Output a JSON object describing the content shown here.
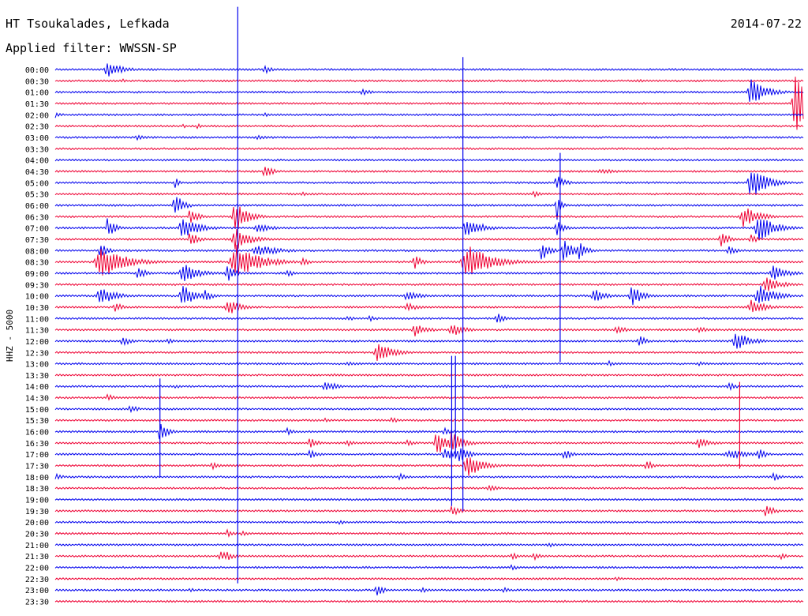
{
  "header": {
    "station": "HT Tsoukalades, Lefkada",
    "filter": "Applied filter: WWSSN-SP",
    "date": "2014-07-22"
  },
  "colors": {
    "blue": "#0000ee",
    "red": "#ee0033"
  },
  "chart_data": {
    "type": "line",
    "title": "HT Tsoukalades, Lefkada",
    "subtitle": "Applied filter: WWSSN-SP",
    "date": "2014-07-22",
    "ylabel": "HHZ - 5000",
    "row_labels": [
      "00:00",
      "00:30",
      "01:00",
      "01:30",
      "02:00",
      "02:30",
      "03:00",
      "03:30",
      "04:00",
      "04:30",
      "05:00",
      "05:30",
      "06:00",
      "06:30",
      "07:00",
      "07:30",
      "08:00",
      "08:30",
      "09:00",
      "09:30",
      "10:00",
      "10:30",
      "11:00",
      "11:30",
      "12:00",
      "12:30",
      "13:00",
      "13:30",
      "14:00",
      "14:30",
      "15:00",
      "15:30",
      "16:00",
      "16:30",
      "17:00",
      "17:30",
      "18:00",
      "18:30",
      "19:00",
      "19:30",
      "20:00",
      "20:30",
      "21:00",
      "21:30",
      "22:00",
      "22:30",
      "23:00",
      "23:30"
    ],
    "row_colors": [
      "blue",
      "red"
    ],
    "row_minutes": 30,
    "events": [
      {
        "row": 0,
        "t": 0.07,
        "a": 10,
        "d": 0.02
      },
      {
        "row": 0,
        "t": 0.28,
        "a": 6,
        "d": 0.01
      },
      {
        "row": 1,
        "t": 0.09,
        "a": 3,
        "d": 0.005
      },
      {
        "row": 1,
        "t": 0.78,
        "a": 2,
        "d": 0.02
      },
      {
        "row": 2,
        "t": 0.41,
        "a": 6,
        "d": 0.01
      },
      {
        "row": 2,
        "t": 0.93,
        "a": 18,
        "d": 0.02
      },
      {
        "row": 2,
        "t": 0.95,
        "a": 5,
        "d": 0.01
      },
      {
        "row": 3,
        "t": 0.99,
        "a": 40,
        "d": 0.02
      },
      {
        "row": 4,
        "t": 0.0,
        "a": 4,
        "d": 0.01
      },
      {
        "row": 4,
        "t": 0.28,
        "a": 3,
        "d": 0.01
      },
      {
        "row": 5,
        "t": 0.17,
        "a": 4,
        "d": 0.005
      },
      {
        "row": 5,
        "t": 0.19,
        "a": 5,
        "d": 0.005
      },
      {
        "row": 6,
        "t": 0.11,
        "a": 4,
        "d": 0.015
      },
      {
        "row": 6,
        "t": 0.27,
        "a": 3,
        "d": 0.02
      },
      {
        "row": 8,
        "t": 0.0,
        "a": 2,
        "d": 0.005
      },
      {
        "row": 9,
        "t": 0.28,
        "a": 10,
        "d": 0.01
      },
      {
        "row": 9,
        "t": 0.73,
        "a": 3,
        "d": 0.03
      },
      {
        "row": 10,
        "t": 0.16,
        "a": 10,
        "d": 0.005
      },
      {
        "row": 10,
        "t": 0.67,
        "a": 12,
        "d": 0.01
      },
      {
        "row": 10,
        "t": 0.93,
        "a": 22,
        "d": 0.02
      },
      {
        "row": 11,
        "t": 0.33,
        "a": 3,
        "d": 0.015
      },
      {
        "row": 11,
        "t": 0.64,
        "a": 4,
        "d": 0.01
      },
      {
        "row": 12,
        "t": 0.16,
        "a": 18,
        "d": 0.01
      },
      {
        "row": 12,
        "t": 0.67,
        "a": 24,
        "d": 0.005
      },
      {
        "row": 13,
        "t": 0.18,
        "a": 12,
        "d": 0.01
      },
      {
        "row": 13,
        "t": 0.24,
        "a": 22,
        "d": 0.015
      },
      {
        "row": 13,
        "t": 0.92,
        "a": 14,
        "d": 0.02
      },
      {
        "row": 14,
        "t": 0.07,
        "a": 14,
        "d": 0.01
      },
      {
        "row": 14,
        "t": 0.17,
        "a": 16,
        "d": 0.02
      },
      {
        "row": 14,
        "t": 0.19,
        "a": 8,
        "d": 0.01
      },
      {
        "row": 14,
        "t": 0.27,
        "a": 6,
        "d": 0.02
      },
      {
        "row": 14,
        "t": 0.55,
        "a": 14,
        "d": 0.02
      },
      {
        "row": 14,
        "t": 0.67,
        "a": 10,
        "d": 0.01
      },
      {
        "row": 14,
        "t": 0.94,
        "a": 20,
        "d": 0.02
      },
      {
        "row": 15,
        "t": 0.18,
        "a": 12,
        "d": 0.01
      },
      {
        "row": 15,
        "t": 0.24,
        "a": 16,
        "d": 0.02
      },
      {
        "row": 15,
        "t": 0.89,
        "a": 12,
        "d": 0.01
      },
      {
        "row": 15,
        "t": 0.93,
        "a": 6,
        "d": 0.01
      },
      {
        "row": 16,
        "t": 0.06,
        "a": 10,
        "d": 0.01
      },
      {
        "row": 16,
        "t": 0.27,
        "a": 8,
        "d": 0.03
      },
      {
        "row": 16,
        "t": 0.65,
        "a": 14,
        "d": 0.01
      },
      {
        "row": 16,
        "t": 0.68,
        "a": 16,
        "d": 0.015
      },
      {
        "row": 16,
        "t": 0.7,
        "a": 12,
        "d": 0.01
      },
      {
        "row": 16,
        "t": 0.9,
        "a": 8,
        "d": 0.01
      },
      {
        "row": 17,
        "t": 0.06,
        "a": 22,
        "d": 0.03
      },
      {
        "row": 17,
        "t": 0.24,
        "a": 24,
        "d": 0.03
      },
      {
        "row": 17,
        "t": 0.33,
        "a": 6,
        "d": 0.01
      },
      {
        "row": 17,
        "t": 0.48,
        "a": 10,
        "d": 0.01
      },
      {
        "row": 17,
        "t": 0.55,
        "a": 24,
        "d": 0.03
      },
      {
        "row": 18,
        "t": 0.11,
        "a": 10,
        "d": 0.01
      },
      {
        "row": 18,
        "t": 0.17,
        "a": 14,
        "d": 0.02
      },
      {
        "row": 18,
        "t": 0.23,
        "a": 12,
        "d": 0.01
      },
      {
        "row": 18,
        "t": 0.31,
        "a": 5,
        "d": 0.01
      },
      {
        "row": 18,
        "t": 0.96,
        "a": 10,
        "d": 0.02
      },
      {
        "row": 19,
        "t": 0.95,
        "a": 10,
        "d": 0.02
      },
      {
        "row": 20,
        "t": 0.06,
        "a": 12,
        "d": 0.02
      },
      {
        "row": 20,
        "t": 0.17,
        "a": 14,
        "d": 0.02
      },
      {
        "row": 20,
        "t": 0.2,
        "a": 8,
        "d": 0.01
      },
      {
        "row": 20,
        "t": 0.47,
        "a": 6,
        "d": 0.02
      },
      {
        "row": 20,
        "t": 0.72,
        "a": 10,
        "d": 0.015
      },
      {
        "row": 20,
        "t": 0.77,
        "a": 14,
        "d": 0.015
      },
      {
        "row": 20,
        "t": 0.94,
        "a": 16,
        "d": 0.02
      },
      {
        "row": 21,
        "t": 0.08,
        "a": 8,
        "d": 0.01
      },
      {
        "row": 21,
        "t": 0.23,
        "a": 12,
        "d": 0.015
      },
      {
        "row": 21,
        "t": 0.47,
        "a": 6,
        "d": 0.015
      },
      {
        "row": 21,
        "t": 0.93,
        "a": 10,
        "d": 0.02
      },
      {
        "row": 22,
        "t": 0.39,
        "a": 4,
        "d": 0.01
      },
      {
        "row": 22,
        "t": 0.42,
        "a": 4,
        "d": 0.01
      },
      {
        "row": 22,
        "t": 0.59,
        "a": 8,
        "d": 0.01
      },
      {
        "row": 23,
        "t": 0.48,
        "a": 10,
        "d": 0.015
      },
      {
        "row": 23,
        "t": 0.53,
        "a": 10,
        "d": 0.015
      },
      {
        "row": 23,
        "t": 0.75,
        "a": 5,
        "d": 0.015
      },
      {
        "row": 23,
        "t": 0.86,
        "a": 4,
        "d": 0.015
      },
      {
        "row": 24,
        "t": 0.09,
        "a": 8,
        "d": 0.01
      },
      {
        "row": 24,
        "t": 0.15,
        "a": 4,
        "d": 0.01
      },
      {
        "row": 24,
        "t": 0.78,
        "a": 8,
        "d": 0.01
      },
      {
        "row": 24,
        "t": 0.91,
        "a": 12,
        "d": 0.02
      },
      {
        "row": 25,
        "t": 0.43,
        "a": 14,
        "d": 0.02
      },
      {
        "row": 26,
        "t": 0.39,
        "a": 3,
        "d": 0.02
      },
      {
        "row": 26,
        "t": 0.74,
        "a": 4,
        "d": 0.01
      },
      {
        "row": 26,
        "t": 0.86,
        "a": 3,
        "d": 0.01
      },
      {
        "row": 27,
        "t": 0.37,
        "a": 2,
        "d": 0.02
      },
      {
        "row": 28,
        "t": 0.16,
        "a": 3,
        "d": 0.01
      },
      {
        "row": 28,
        "t": 0.36,
        "a": 8,
        "d": 0.01
      },
      {
        "row": 28,
        "t": 0.37,
        "a": 6,
        "d": 0.01
      },
      {
        "row": 28,
        "t": 0.6,
        "a": 3,
        "d": 0.01
      },
      {
        "row": 28,
        "t": 0.9,
        "a": 6,
        "d": 0.01
      },
      {
        "row": 29,
        "t": 0.07,
        "a": 5,
        "d": 0.01
      },
      {
        "row": 30,
        "t": 0.1,
        "a": 6,
        "d": 0.01
      },
      {
        "row": 31,
        "t": 0.36,
        "a": 3,
        "d": 0.01
      },
      {
        "row": 31,
        "t": 0.45,
        "a": 4,
        "d": 0.01
      },
      {
        "row": 32,
        "t": 0.14,
        "a": 14,
        "d": 0.01
      },
      {
        "row": 32,
        "t": 0.31,
        "a": 5,
        "d": 0.01
      },
      {
        "row": 32,
        "t": 0.52,
        "a": 5,
        "d": 0.01
      },
      {
        "row": 33,
        "t": 0.34,
        "a": 8,
        "d": 0.01
      },
      {
        "row": 33,
        "t": 0.39,
        "a": 5,
        "d": 0.01
      },
      {
        "row": 33,
        "t": 0.47,
        "a": 5,
        "d": 0.01
      },
      {
        "row": 33,
        "t": 0.51,
        "a": 18,
        "d": 0.015
      },
      {
        "row": 33,
        "t": 0.53,
        "a": 16,
        "d": 0.015
      },
      {
        "row": 33,
        "t": 0.86,
        "a": 8,
        "d": 0.015
      },
      {
        "row": 34,
        "t": 0.34,
        "a": 8,
        "d": 0.01
      },
      {
        "row": 34,
        "t": 0.52,
        "a": 10,
        "d": 0.015
      },
      {
        "row": 34,
        "t": 0.54,
        "a": 10,
        "d": 0.015
      },
      {
        "row": 34,
        "t": 0.68,
        "a": 8,
        "d": 0.01
      },
      {
        "row": 34,
        "t": 0.9,
        "a": 6,
        "d": 0.03
      },
      {
        "row": 34,
        "t": 0.94,
        "a": 8,
        "d": 0.01
      },
      {
        "row": 35,
        "t": 0.21,
        "a": 5,
        "d": 0.01
      },
      {
        "row": 35,
        "t": 0.55,
        "a": 16,
        "d": 0.02
      },
      {
        "row": 35,
        "t": 0.79,
        "a": 8,
        "d": 0.01
      },
      {
        "row": 36,
        "t": 0.0,
        "a": 5,
        "d": 0.01
      },
      {
        "row": 36,
        "t": 0.46,
        "a": 5,
        "d": 0.01
      },
      {
        "row": 36,
        "t": 0.96,
        "a": 6,
        "d": 0.01
      },
      {
        "row": 37,
        "t": 0.58,
        "a": 6,
        "d": 0.01
      },
      {
        "row": 39,
        "t": 0.53,
        "a": 8,
        "d": 0.01
      },
      {
        "row": 39,
        "t": 0.95,
        "a": 10,
        "d": 0.01
      },
      {
        "row": 40,
        "t": 0.38,
        "a": 3,
        "d": 0.01
      },
      {
        "row": 41,
        "t": 0.23,
        "a": 5,
        "d": 0.01
      },
      {
        "row": 41,
        "t": 0.25,
        "a": 4,
        "d": 0.01
      },
      {
        "row": 42,
        "t": 0.66,
        "a": 3,
        "d": 0.015
      },
      {
        "row": 43,
        "t": 0.22,
        "a": 8,
        "d": 0.01
      },
      {
        "row": 43,
        "t": 0.23,
        "a": 6,
        "d": 0.01
      },
      {
        "row": 43,
        "t": 0.61,
        "a": 5,
        "d": 0.01
      },
      {
        "row": 43,
        "t": 0.64,
        "a": 6,
        "d": 0.01
      },
      {
        "row": 43,
        "t": 0.97,
        "a": 4,
        "d": 0.01
      },
      {
        "row": 44,
        "t": 0.61,
        "a": 4,
        "d": 0.01
      },
      {
        "row": 45,
        "t": 0.75,
        "a": 3,
        "d": 0.01
      },
      {
        "row": 46,
        "t": 0.18,
        "a": 3,
        "d": 0.01
      },
      {
        "row": 46,
        "t": 0.43,
        "a": 8,
        "d": 0.01
      },
      {
        "row": 46,
        "t": 0.49,
        "a": 4,
        "d": 0.01
      },
      {
        "row": 46,
        "t": 0.6,
        "a": 4,
        "d": 0.01
      }
    ],
    "spikes": [
      {
        "row": 14,
        "t": 0.244,
        "up": 280,
        "down": 450
      },
      {
        "row": 16,
        "t": 0.545,
        "up": 245,
        "down": 330
      },
      {
        "row": 14,
        "t": 0.675,
        "up": 95,
        "down": 170
      },
      {
        "row": 26,
        "t": 0.535,
        "up": 10,
        "down": 120
      },
      {
        "row": 26,
        "t": 0.53,
        "up": 10,
        "down": 180
      },
      {
        "row": 28,
        "t": 0.14,
        "up": 10,
        "down": 115
      },
      {
        "row": 29,
        "t": 0.915,
        "up": 20,
        "down": 90
      }
    ]
  }
}
